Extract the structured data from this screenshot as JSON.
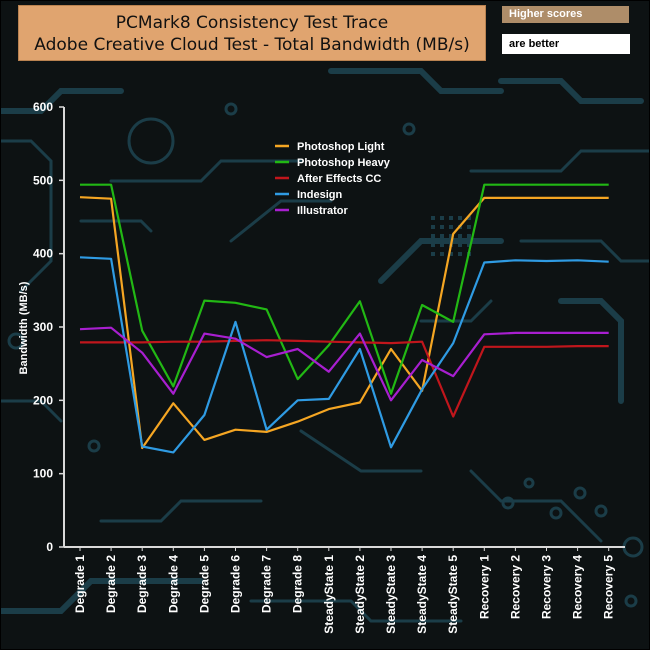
{
  "header": {
    "title_line1": "PCMark8 Consistency Test Trace",
    "title_line2": "Adobe Creative Cloud Test - Total Bandwidth (MB/s)",
    "note_top": "Higher scores",
    "note_bottom": "are better"
  },
  "colors": {
    "background": "#0d1213",
    "circuit": "#1b3d48",
    "axis": "#d9d9d9",
    "title_box": "#e0a46f"
  },
  "chart_data": {
    "type": "line",
    "title": "PCMark8 Consistency Test Trace Adobe Creative Cloud Test - Total Bandwidth (MB/s)",
    "ylabel": "Bandwidth (MB/s)",
    "xlabel": "",
    "ylim": [
      0,
      600
    ],
    "yticks": [
      0,
      100,
      200,
      300,
      400,
      500,
      600
    ],
    "grid": false,
    "legend_position": "top-center",
    "categories": [
      "Degrade 1",
      "Degrade 2",
      "Degrade 3",
      "Degrade 4",
      "Degrade 5",
      "Degrade 6",
      "Degrade 7",
      "Degrade 8",
      "SteadyState 1",
      "SteadyState 2",
      "SteadyState 3",
      "SteadyState 4",
      "SteadyState 5",
      "Recovery 1",
      "Recovery 2",
      "Recovery 3",
      "Recovery 4",
      "Recovery 5"
    ],
    "series": [
      {
        "name": "Photoshop Light",
        "color": "#f5a623",
        "values": [
          477,
          475,
          135,
          196,
          146,
          160,
          157,
          171,
          188,
          197,
          270,
          213,
          427,
          476,
          476,
          476,
          476,
          476
        ]
      },
      {
        "name": " Photoshop Heavy",
        "color": "#22b814",
        "values": [
          494,
          494,
          295,
          219,
          336,
          333,
          324,
          229,
          275,
          335,
          209,
          330,
          307,
          494,
          494,
          494,
          494,
          494
        ]
      },
      {
        "name": "After Effects CC",
        "color": "#c0161c",
        "values": [
          279,
          279,
          279,
          280,
          280,
          281,
          282,
          281,
          280,
          279,
          278,
          280,
          178,
          273,
          273,
          273,
          274,
          274
        ]
      },
      {
        "name": "Indesign",
        "color": "#2f9be3",
        "values": [
          395,
          393,
          137,
          129,
          180,
          307,
          160,
          200,
          202,
          270,
          136,
          215,
          278,
          388,
          391,
          390,
          391,
          389
        ]
      },
      {
        "name": "Illustrator",
        "color": "#a81fd0",
        "values": [
          297,
          299,
          265,
          209,
          291,
          284,
          259,
          270,
          239,
          291,
          200,
          255,
          233,
          290,
          292,
          292,
          292,
          292
        ]
      }
    ]
  }
}
